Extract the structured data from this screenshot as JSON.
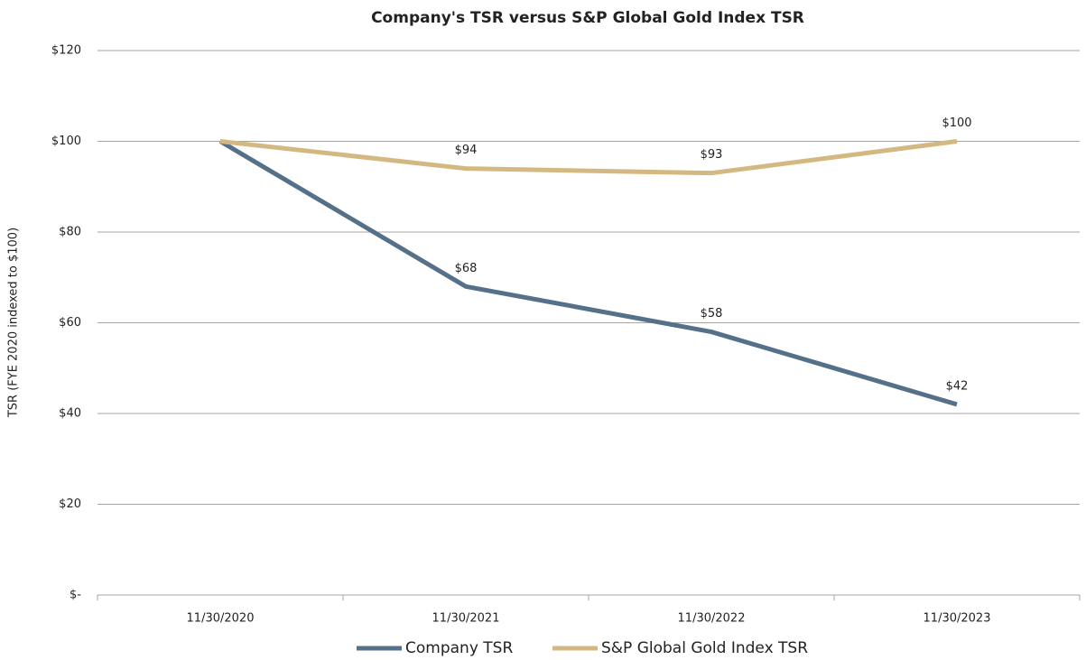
{
  "chart_data": {
    "type": "line",
    "title": "Company's TSR versus S&P Global Gold Index TSR",
    "y_label": "TSR (FYE 2020 indexed to $100)",
    "categories": [
      "11/30/2020",
      "11/30/2021",
      "11/30/2022",
      "11/30/2023"
    ],
    "series": [
      {
        "name": "Company TSR",
        "color": "#557089",
        "values": [
          100,
          68,
          58,
          42
        ],
        "value_labels": [
          null,
          "$68",
          "$58",
          "$42"
        ]
      },
      {
        "name": "S&P Global Gold Index TSR",
        "color": "#d4b882",
        "values": [
          100,
          94,
          93,
          100
        ],
        "value_labels": [
          null,
          "$94",
          "$93",
          "$100"
        ]
      }
    ],
    "ylim": [
      0,
      120
    ],
    "yticks": [
      {
        "value": 0,
        "label": "$-"
      },
      {
        "value": 20,
        "label": "$20"
      },
      {
        "value": 40,
        "label": "$40"
      },
      {
        "value": 60,
        "label": "$60"
      },
      {
        "value": 80,
        "label": "$80"
      },
      {
        "value": 100,
        "label": "$100"
      },
      {
        "value": 120,
        "label": "$120"
      }
    ],
    "grid": true,
    "legend": "bottom"
  }
}
